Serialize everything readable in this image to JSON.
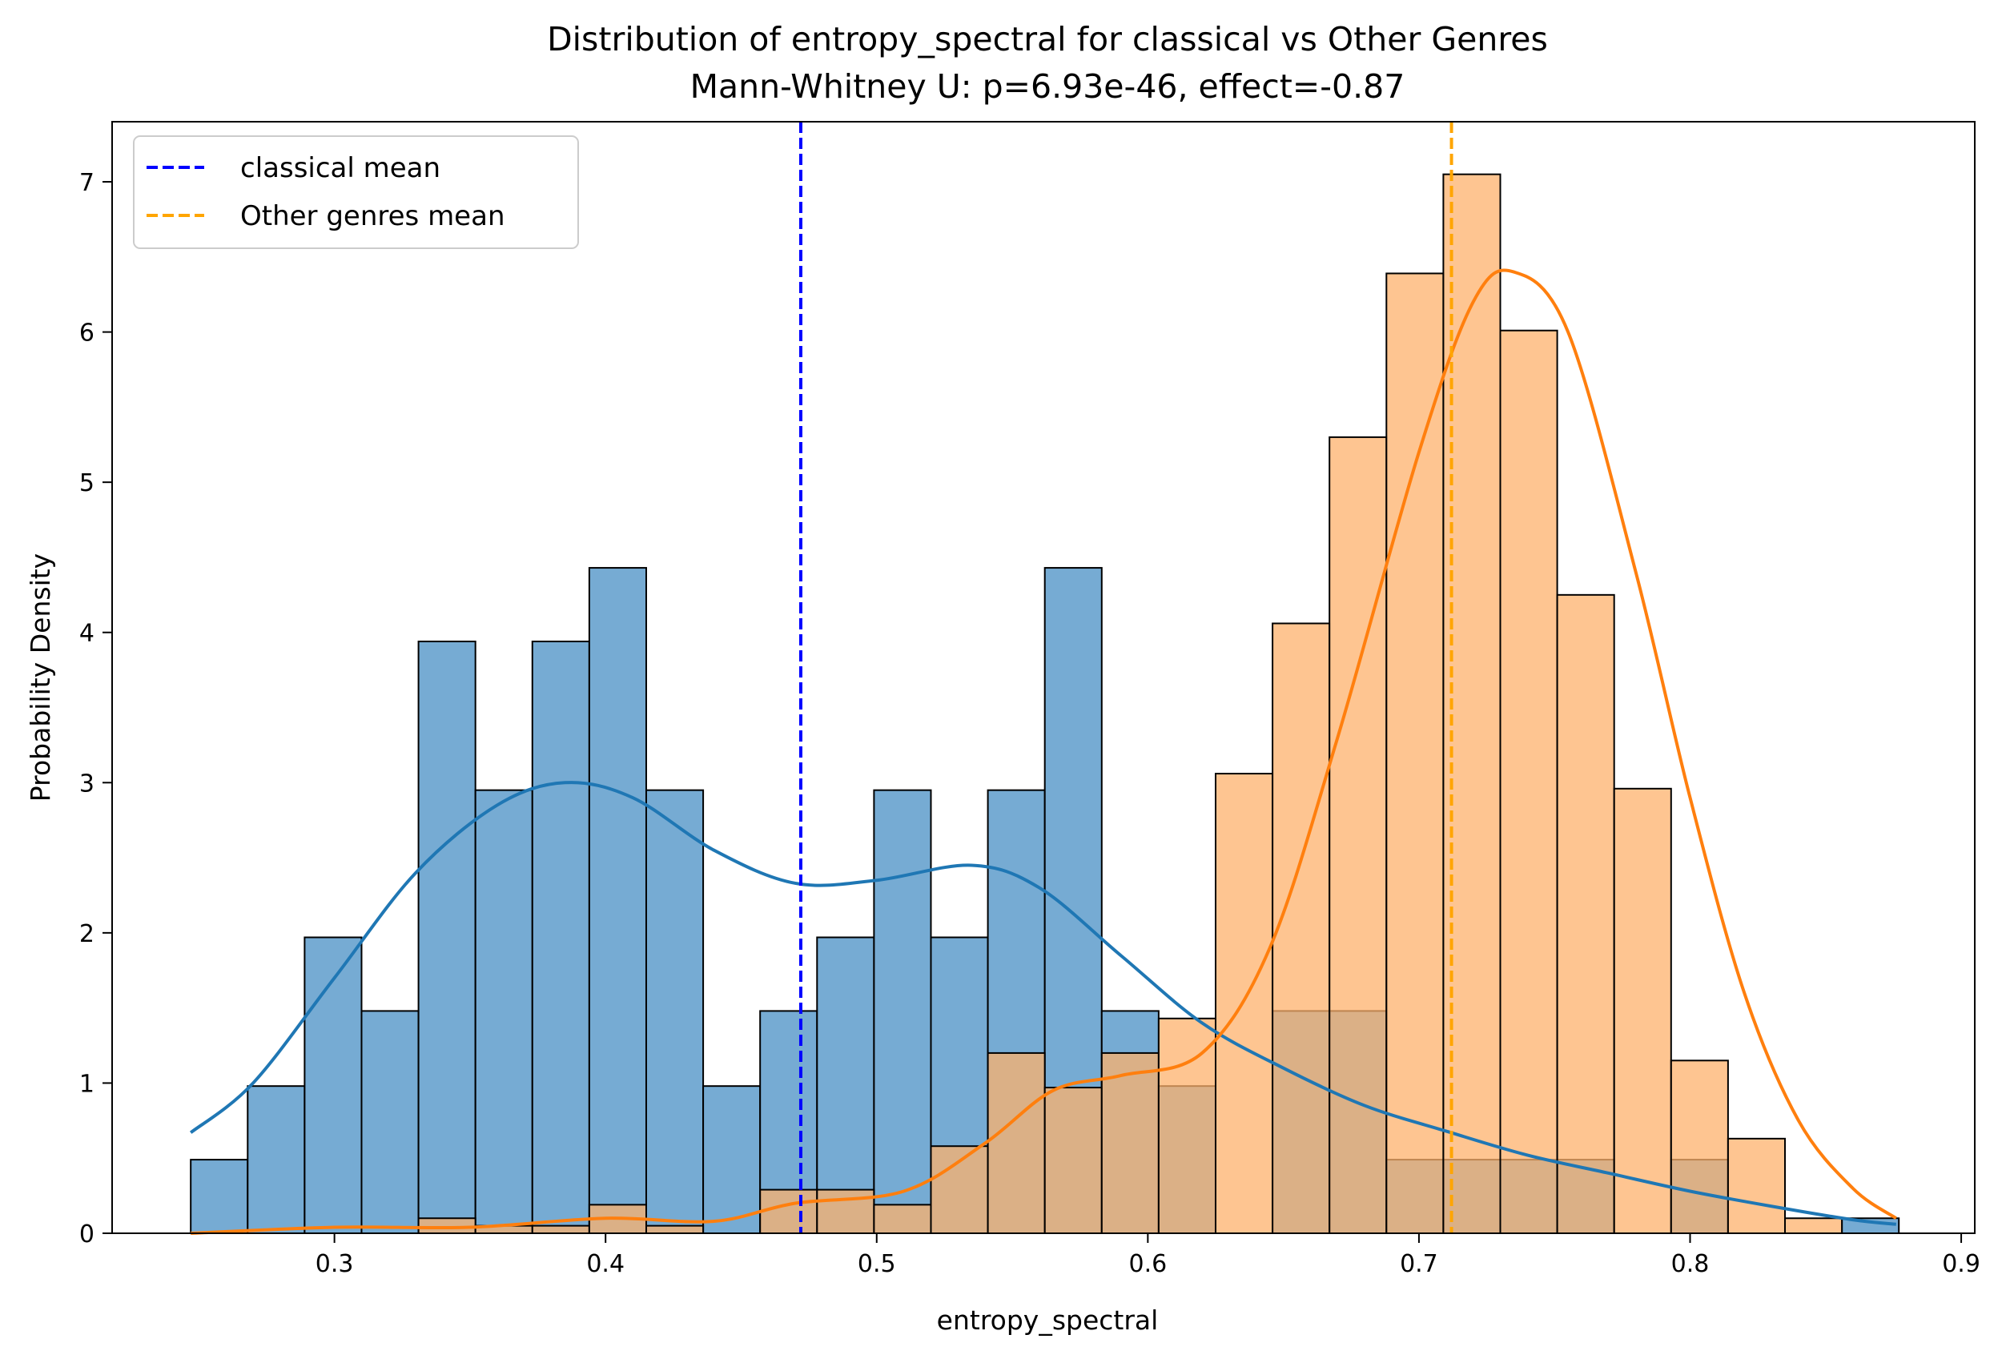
{
  "chart_data": {
    "type": "histogram",
    "title": "Distribution of entropy_spectral for classical vs Other Genres",
    "subtitle": "Mann-Whitney U: p=6.93e-46, effect=-0.87",
    "xlabel": "entropy_spectral",
    "ylabel": "Probability Density",
    "xlim": [
      0.218,
      0.905
    ],
    "ylim": [
      0,
      7.4
    ],
    "xticks": [
      0.3,
      0.4,
      0.5,
      0.6,
      0.7,
      0.8,
      0.9
    ],
    "yticks": [
      0,
      1,
      2,
      3,
      4,
      5,
      6,
      7
    ],
    "legend_position": "top-left",
    "series": [
      {
        "name": "classical",
        "color": "#1f77b4",
        "fill": "#76abd3",
        "bin_start": 0.247,
        "bin_width": 0.021,
        "values": [
          0.49,
          0.98,
          1.97,
          1.48,
          3.94,
          2.95,
          3.94,
          4.43,
          2.95,
          0.98,
          1.48,
          1.97,
          2.95,
          1.97,
          2.95,
          4.43,
          1.48,
          0.98,
          0,
          1.48,
          1.48,
          0.49,
          0.49,
          0.49,
          0.49,
          0,
          0.49,
          0,
          0,
          0.1
        ],
        "kde_x": [
          0.247,
          0.27,
          0.3,
          0.33,
          0.36,
          0.385,
          0.41,
          0.44,
          0.47,
          0.5,
          0.535,
          0.56,
          0.59,
          0.62,
          0.65,
          0.68,
          0.71,
          0.74,
          0.77,
          0.8,
          0.83,
          0.86,
          0.876
        ],
        "kde_y": [
          0.67,
          1.0,
          1.7,
          2.4,
          2.85,
          3.0,
          2.9,
          2.55,
          2.33,
          2.35,
          2.45,
          2.3,
          1.85,
          1.4,
          1.1,
          0.85,
          0.68,
          0.52,
          0.4,
          0.28,
          0.18,
          0.09,
          0.06
        ]
      },
      {
        "name": "Other genres",
        "color": "#ff7f0e",
        "fill": "#feb16c",
        "bin_start": 0.247,
        "bin_width": 0.021,
        "values": [
          0,
          0,
          0,
          0,
          0.1,
          0.05,
          0.05,
          0.19,
          0.05,
          0,
          0.29,
          0.29,
          0.19,
          0.58,
          1.2,
          0.97,
          1.2,
          1.43,
          3.06,
          4.06,
          5.3,
          6.39,
          7.05,
          6.01,
          4.25,
          2.96,
          1.15,
          0.63,
          0.1,
          0
        ],
        "kde_x": [
          0.247,
          0.3,
          0.35,
          0.4,
          0.44,
          0.47,
          0.51,
          0.54,
          0.565,
          0.59,
          0.62,
          0.645,
          0.67,
          0.7,
          0.72,
          0.735,
          0.755,
          0.78,
          0.8,
          0.82,
          0.84,
          0.86,
          0.876
        ],
        "kde_y": [
          0.0,
          0.04,
          0.04,
          0.1,
          0.08,
          0.2,
          0.28,
          0.6,
          0.95,
          1.05,
          1.2,
          1.9,
          3.3,
          5.2,
          6.2,
          6.4,
          6.0,
          4.4,
          2.9,
          1.6,
          0.75,
          0.3,
          0.1
        ]
      }
    ],
    "reference_lines": [
      {
        "label": "classical mean",
        "x": 0.472,
        "color": "#0000ff",
        "style": "dashed"
      },
      {
        "label": "Other genres mean",
        "x": 0.712,
        "color": "#ffa500",
        "style": "dashed"
      }
    ]
  }
}
